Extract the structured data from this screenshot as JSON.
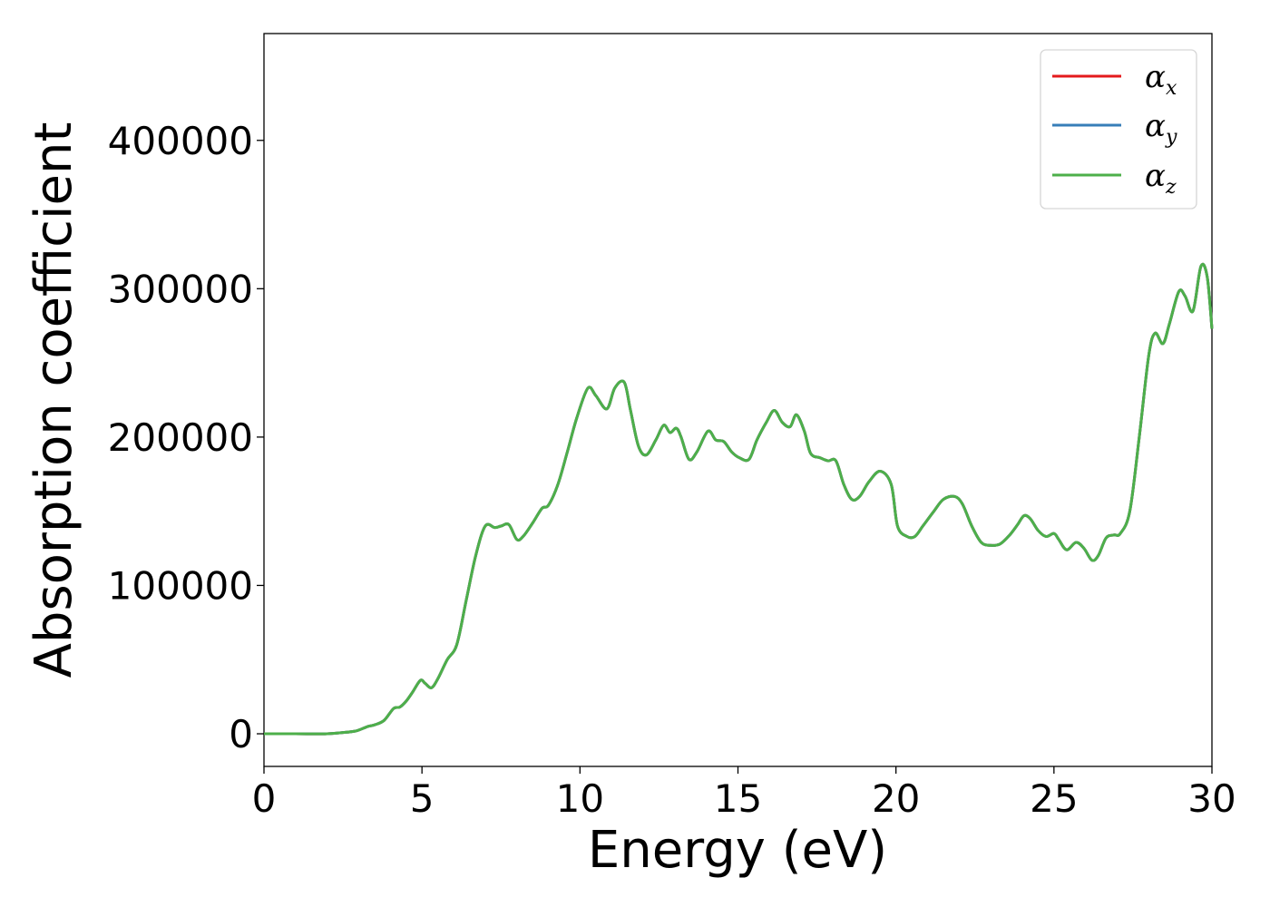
{
  "chart_data": {
    "type": "line",
    "title": "",
    "xlabel": "Energy (eV)",
    "ylabel": "Absorption coefficient",
    "xlim": [
      0,
      30
    ],
    "ylim": [
      -22000,
      472000
    ],
    "xticks": [
      0,
      5,
      10,
      15,
      20,
      25,
      30
    ],
    "yticks": [
      0,
      100000,
      200000,
      300000,
      400000
    ],
    "grid": false,
    "legend_position": "top-right",
    "x": [
      0,
      1,
      2,
      2.8,
      3.0,
      3.3,
      3.5,
      3.8,
      4.1,
      4.3,
      4.5,
      4.7,
      4.95,
      5.1,
      5.3,
      5.5,
      5.8,
      6.1,
      6.4,
      6.7,
      7.0,
      7.3,
      7.5,
      7.75,
      8.0,
      8.2,
      8.5,
      8.8,
      9.0,
      9.3,
      9.6,
      9.9,
      10.25,
      10.5,
      10.85,
      11.1,
      11.4,
      11.6,
      11.85,
      12.1,
      12.4,
      12.65,
      12.85,
      13.05,
      13.2,
      13.45,
      13.7,
      14.05,
      14.3,
      14.55,
      14.8,
      15.05,
      15.35,
      15.6,
      15.9,
      16.15,
      16.4,
      16.65,
      16.85,
      17.1,
      17.3,
      17.6,
      17.85,
      18.1,
      18.35,
      18.6,
      18.85,
      19.15,
      19.5,
      19.85,
      20.05,
      20.35,
      20.6,
      20.85,
      21.2,
      21.5,
      21.85,
      22.1,
      22.4,
      22.7,
      23.0,
      23.3,
      23.6,
      23.85,
      24.05,
      24.25,
      24.5,
      24.75,
      25.0,
      25.15,
      25.4,
      25.7,
      25.95,
      26.2,
      26.4,
      26.65,
      26.9,
      27.1,
      27.4,
      27.7,
      28.0,
      28.2,
      28.45,
      28.65,
      28.95,
      29.15,
      29.4,
      29.65,
      29.85,
      30.0
    ],
    "series": [
      {
        "name": "α_x",
        "color": "#e41a1c",
        "values": [
          0,
          0,
          0,
          1500,
          2500,
          5000,
          6000,
          9000,
          17000,
          18000,
          22000,
          28000,
          36000,
          34000,
          31000,
          37000,
          50000,
          60000,
          90000,
          120000,
          140000,
          139000,
          140000,
          141000,
          131000,
          133000,
          142000,
          152000,
          154000,
          168000,
          190000,
          213000,
          233000,
          228000,
          219000,
          233000,
          237000,
          218000,
          194000,
          188000,
          198000,
          208000,
          203000,
          206000,
          200000,
          185000,
          190000,
          204000,
          198000,
          197000,
          190000,
          186000,
          185000,
          198000,
          210000,
          218000,
          210000,
          207000,
          215000,
          204000,
          189000,
          186000,
          184000,
          184000,
          168000,
          158000,
          160000,
          170000,
          177000,
          168000,
          140000,
          133000,
          133000,
          140000,
          150000,
          158000,
          160000,
          155000,
          140000,
          129000,
          127000,
          128000,
          134000,
          141000,
          147000,
          145000,
          137000,
          133000,
          135000,
          131000,
          124000,
          129000,
          125000,
          117000,
          120000,
          132000,
          134000,
          135000,
          150000,
          200000,
          255000,
          270000,
          263000,
          276000,
          298000,
          295000,
          285000,
          315000,
          308000,
          273000
        ]
      },
      {
        "name": "α_y",
        "color": "#377eb8",
        "values": [
          0,
          0,
          0,
          1500,
          2500,
          5000,
          6000,
          9000,
          17000,
          18000,
          22000,
          28000,
          36000,
          34000,
          31000,
          37000,
          50000,
          60000,
          90000,
          120000,
          140000,
          139000,
          140000,
          141000,
          131000,
          133000,
          142000,
          152000,
          154000,
          168000,
          190000,
          213000,
          233000,
          228000,
          219000,
          233000,
          237000,
          218000,
          194000,
          188000,
          198000,
          208000,
          203000,
          206000,
          200000,
          185000,
          190000,
          204000,
          198000,
          197000,
          190000,
          186000,
          185000,
          198000,
          210000,
          218000,
          210000,
          207000,
          215000,
          204000,
          189000,
          186000,
          184000,
          184000,
          168000,
          158000,
          160000,
          170000,
          177000,
          168000,
          140000,
          133000,
          133000,
          140000,
          150000,
          158000,
          160000,
          155000,
          140000,
          129000,
          127000,
          128000,
          134000,
          141000,
          147000,
          145000,
          137000,
          133000,
          135000,
          131000,
          124000,
          129000,
          125000,
          117000,
          120000,
          132000,
          134000,
          135000,
          150000,
          200000,
          255000,
          270000,
          263000,
          276000,
          298000,
          295000,
          285000,
          315000,
          308000,
          273000
        ]
      },
      {
        "name": "α_z",
        "color": "#4daf4a",
        "values": [
          0,
          0,
          0,
          1500,
          2500,
          5000,
          6000,
          9000,
          17000,
          18000,
          22000,
          28000,
          36000,
          34000,
          31000,
          37000,
          50000,
          60000,
          90000,
          120000,
          140000,
          139000,
          140000,
          141000,
          131000,
          133000,
          142000,
          152000,
          154000,
          168000,
          190000,
          213000,
          233000,
          228000,
          219000,
          233000,
          237000,
          218000,
          194000,
          188000,
          198000,
          208000,
          203000,
          206000,
          200000,
          185000,
          190000,
          204000,
          198000,
          197000,
          190000,
          186000,
          185000,
          198000,
          210000,
          218000,
          210000,
          207000,
          215000,
          204000,
          189000,
          186000,
          184000,
          184000,
          168000,
          158000,
          160000,
          170000,
          177000,
          168000,
          140000,
          133000,
          133000,
          140000,
          150000,
          158000,
          160000,
          155000,
          140000,
          129000,
          127000,
          128000,
          134000,
          141000,
          147000,
          145000,
          137000,
          133000,
          135000,
          131000,
          124000,
          129000,
          125000,
          117000,
          120000,
          132000,
          134000,
          135000,
          150000,
          200000,
          255000,
          270000,
          263000,
          276000,
          298000,
          295000,
          285000,
          315000,
          308000,
          273000
        ]
      }
    ],
    "legend": [
      {
        "symbol": "α",
        "sub": "x"
      },
      {
        "symbol": "α",
        "sub": "y"
      },
      {
        "symbol": "α",
        "sub": "z"
      }
    ]
  }
}
